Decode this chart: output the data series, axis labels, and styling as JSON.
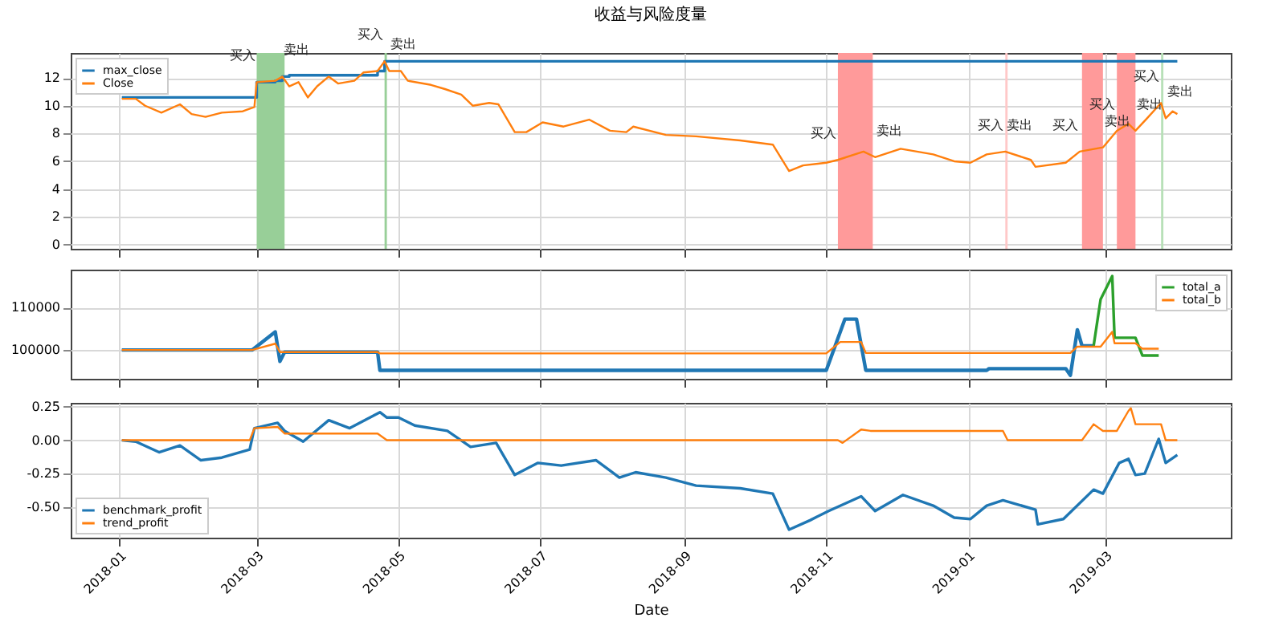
{
  "chart_data": [
    {
      "type": "line",
      "title": "收益与风险度量",
      "xlim": [
        "2017-12-11",
        "2019-04-24"
      ],
      "xticks": [
        "2018-01",
        "2018-03",
        "2018-05",
        "2018-07",
        "2018-09",
        "2018-11",
        "2019-01",
        "2019-03"
      ],
      "ylim": [
        -0.3,
        13.8
      ],
      "yticks": [
        0,
        2,
        4,
        6,
        8,
        10,
        12
      ],
      "grid": true,
      "legend": "top left",
      "tick_labels": "y",
      "series": [
        {
          "name": "max_close",
          "type": "step",
          "color": "#1f77b4",
          "x": [
            "2018-01-02",
            "2018-03-01",
            "2018-03-09",
            "2018-03-12",
            "2018-03-15",
            "2018-04-22",
            "2018-04-25",
            "2019-04-01"
          ],
          "values": [
            10.6,
            11.7,
            11.8,
            12.1,
            12.2,
            12.5,
            13.2,
            13.2
          ]
        },
        {
          "name": "Close",
          "type": "line",
          "color": "#ff7f0e",
          "x": [
            "2018-01-02",
            "2018-01-08",
            "2018-01-12",
            "2018-01-19",
            "2018-01-27",
            "2018-02-01",
            "2018-02-07",
            "2018-02-14",
            "2018-02-23",
            "2018-02-28",
            "2018-03-01",
            "2018-03-09",
            "2018-03-12",
            "2018-03-15",
            "2018-03-19",
            "2018-03-23",
            "2018-03-27",
            "2018-04-01",
            "2018-04-05",
            "2018-04-12",
            "2018-04-16",
            "2018-04-22",
            "2018-04-25",
            "2018-04-27",
            "2018-05-02",
            "2018-05-05",
            "2018-05-15",
            "2018-05-21",
            "2018-05-28",
            "2018-06-02",
            "2018-06-09",
            "2018-06-13",
            "2018-06-20",
            "2018-06-25",
            "2018-07-02",
            "2018-07-11",
            "2018-07-22",
            "2018-07-31",
            "2018-08-07",
            "2018-08-10",
            "2018-08-24",
            "2018-09-06",
            "2018-09-25",
            "2018-10-09",
            "2018-10-16",
            "2018-10-22",
            "2018-11-01",
            "2018-11-06",
            "2018-11-17",
            "2018-11-22",
            "2018-12-03",
            "2018-12-17",
            "2018-12-26",
            "2019-01-02",
            "2019-01-09",
            "2019-01-17",
            "2019-01-28",
            "2019-01-30",
            "2019-02-12",
            "2019-02-18",
            "2019-02-28",
            "2019-03-06",
            "2019-03-11",
            "2019-03-14",
            "2019-03-19",
            "2019-03-25",
            "2019-03-27",
            "2019-03-30",
            "2019-04-01"
          ],
          "values": [
            10.5,
            10.5,
            10.0,
            9.5,
            10.1,
            9.4,
            9.2,
            9.5,
            9.6,
            9.9,
            11.7,
            11.8,
            12.1,
            11.4,
            11.7,
            10.6,
            11.4,
            12.1,
            11.6,
            11.8,
            12.4,
            12.5,
            13.2,
            12.5,
            12.5,
            11.8,
            11.5,
            11.2,
            10.8,
            10.0,
            10.2,
            10.1,
            8.1,
            8.1,
            8.8,
            8.5,
            9.0,
            8.2,
            8.1,
            8.5,
            7.9,
            7.8,
            7.5,
            7.2,
            5.3,
            5.7,
            5.9,
            6.1,
            6.7,
            6.3,
            6.9,
            6.5,
            6.0,
            5.9,
            6.5,
            6.7,
            6.1,
            5.6,
            5.9,
            6.7,
            7.0,
            8.2,
            8.7,
            8.2,
            9.1,
            10.2,
            9.1,
            9.6,
            9.4
          ]
        }
      ],
      "bands": [
        {
          "axis": "x",
          "from": "2018-03-01",
          "to": "2018-03-13",
          "color": "#98cf98"
        },
        {
          "axis": "x",
          "from": "2018-04-25",
          "to": "2018-04-26",
          "color": "#98cf98"
        },
        {
          "axis": "x",
          "from": "2018-11-06",
          "to": "2018-11-21",
          "color": "#ff9a9a"
        },
        {
          "axis": "x",
          "from": "2019-01-17",
          "to": "2019-01-18",
          "color": "#ffc8c8"
        },
        {
          "axis": "x",
          "from": "2019-02-19",
          "to": "2019-02-28",
          "color": "#ff9a9a"
        },
        {
          "axis": "x",
          "from": "2019-03-06",
          "to": "2019-03-14",
          "color": "#ff9a9a"
        },
        {
          "axis": "x",
          "from": "2019-03-25",
          "to": "2019-03-26",
          "color": "#b8e0b8"
        }
      ],
      "annotations": [
        {
          "text": "买入",
          "x": "2018-03-01",
          "y": 11.7
        },
        {
          "text": "卖出",
          "x": "2018-03-12",
          "y": 12.1
        },
        {
          "text": "买入",
          "x": "2018-04-25",
          "y": 13.2
        },
        {
          "text": "卖出",
          "x": "2018-04-27",
          "y": 12.5
        },
        {
          "text": "买入",
          "x": "2018-11-06",
          "y": 6.1
        },
        {
          "text": "卖出",
          "x": "2018-11-22",
          "y": 6.3
        },
        {
          "text": "买入",
          "x": "2019-01-17",
          "y": 6.7
        },
        {
          "text": "卖出",
          "x": "2019-01-17",
          "y": 6.7
        },
        {
          "text": "买入",
          "x": "2019-02-18",
          "y": 6.7
        },
        {
          "text": "卖出",
          "x": "2019-02-28",
          "y": 7.0
        },
        {
          "text": "买入",
          "x": "2019-03-06",
          "y": 8.2
        },
        {
          "text": "卖出",
          "x": "2019-03-14",
          "y": 8.2
        },
        {
          "text": "买入",
          "x": "2019-03-25",
          "y": 10.2
        },
        {
          "text": "卖出",
          "x": "2019-03-27",
          "y": 9.1
        }
      ]
    },
    {
      "type": "line",
      "xlim": [
        "2017-12-11",
        "2019-04-24"
      ],
      "xticks": [
        "2018-01",
        "2018-03",
        "2018-05",
        "2018-07",
        "2018-09",
        "2018-11",
        "2019-01",
        "2019-03"
      ],
      "ylim": [
        93200,
        119000
      ],
      "yticks": [
        {
          "value": 100000,
          "label": "100000"
        },
        {
          "value": 110000,
          "label": "110000"
        }
      ],
      "grid": true,
      "legend": "top right",
      "tick_labels": "y",
      "series": [
        {
          "color": "#1f77b4",
          "x": [
            "2018-01-02",
            "2018-02-27",
            "2018-03-09",
            "2018-03-11",
            "2018-03-13",
            "2018-04-22",
            "2018-04-23",
            "2018-11-01",
            "2018-11-09",
            "2018-11-14",
            "2018-11-18",
            "2019-01-09",
            "2019-01-10",
            "2019-02-12",
            "2019-02-14",
            "2019-02-17",
            "2019-02-19",
            "2019-02-24"
          ],
          "values": [
            100000,
            100000,
            104300,
            97300,
            99500,
            99500,
            95200,
            95200,
            107300,
            107300,
            95200,
            95200,
            95600,
            95600,
            94000,
            104800,
            101000,
            101000
          ]
        },
        {
          "name": "total_a",
          "color": "#2ca02c",
          "x": [
            "2019-02-24",
            "2019-02-27",
            "2019-03-04",
            "2019-03-05",
            "2019-03-14",
            "2019-03-17",
            "2019-03-24"
          ],
          "values": [
            101000,
            112000,
            117500,
            102900,
            102900,
            98700,
            98700
          ]
        },
        {
          "name": "total_b",
          "color": "#ff7f0e",
          "x": [
            "2018-01-02",
            "2018-02-27",
            "2018-03-09",
            "2018-03-11",
            "2018-04-22",
            "2018-04-23",
            "2018-11-01",
            "2018-11-07",
            "2018-11-16",
            "2018-11-18",
            "2019-02-14",
            "2019-02-17",
            "2019-02-27",
            "2019-03-04",
            "2019-03-05",
            "2019-03-14",
            "2019-03-17",
            "2019-03-24"
          ],
          "values": [
            100000,
            100000,
            101500,
            99500,
            99500,
            99200,
            99200,
            101900,
            101900,
            99300,
            99300,
            100800,
            100800,
            104300,
            101600,
            101600,
            100300,
            100300
          ]
        }
      ]
    },
    {
      "type": "line",
      "xlabel": "Date",
      "xlim": [
        "2017-12-11",
        "2019-04-24"
      ],
      "xticks": [
        "2018-01",
        "2018-03",
        "2018-05",
        "2018-07",
        "2018-09",
        "2018-11",
        "2019-01",
        "2019-03"
      ],
      "ylim": [
        -0.73,
        0.28
      ],
      "yticks": [
        {
          "value": -0.5,
          "label": "-0.50"
        },
        {
          "value": -0.25,
          "label": "-0.25"
        },
        {
          "value": 0,
          "label": "0.00"
        },
        {
          "value": 0.25,
          "label": "0.25"
        }
      ],
      "grid": true,
      "legend": "bottom left",
      "series": [
        {
          "name": "benchmark_profit",
          "color": "#1f77b4",
          "x": [
            "2018-01-02",
            "2018-01-08",
            "2018-01-18",
            "2018-01-27",
            "2018-02-05",
            "2018-02-14",
            "2018-02-26",
            "2018-02-28",
            "2018-03-10",
            "2018-03-13",
            "2018-03-21",
            "2018-04-01",
            "2018-04-10",
            "2018-04-23",
            "2018-04-26",
            "2018-05-01",
            "2018-05-08",
            "2018-05-22",
            "2018-06-01",
            "2018-06-12",
            "2018-06-20",
            "2018-06-30",
            "2018-07-10",
            "2018-07-25",
            "2018-08-04",
            "2018-08-11",
            "2018-08-24",
            "2018-09-06",
            "2018-09-25",
            "2018-10-09",
            "2018-10-16",
            "2018-10-25",
            "2018-11-02",
            "2018-11-16",
            "2018-11-22",
            "2018-12-04",
            "2018-12-17",
            "2018-12-26",
            "2019-01-02",
            "2019-01-09",
            "2019-01-16",
            "2019-01-30",
            "2019-01-31",
            "2019-02-11",
            "2019-02-24",
            "2019-02-28",
            "2019-03-07",
            "2019-03-11",
            "2019-03-14",
            "2019-03-18",
            "2019-03-24",
            "2019-03-27",
            "2019-04-01"
          ],
          "values": [
            0.0,
            -0.01,
            -0.09,
            -0.04,
            -0.15,
            -0.13,
            -0.07,
            0.09,
            0.13,
            0.07,
            -0.01,
            0.15,
            0.09,
            0.21,
            0.17,
            0.17,
            0.11,
            0.07,
            -0.05,
            -0.02,
            -0.26,
            -0.17,
            -0.19,
            -0.15,
            -0.28,
            -0.24,
            -0.28,
            -0.34,
            -0.36,
            -0.4,
            -0.67,
            -0.6,
            -0.53,
            -0.42,
            -0.53,
            -0.41,
            -0.49,
            -0.58,
            -0.59,
            -0.49,
            -0.45,
            -0.52,
            -0.63,
            -0.59,
            -0.37,
            -0.4,
            -0.17,
            -0.14,
            -0.26,
            -0.25,
            0.01,
            -0.17,
            -0.11
          ]
        },
        {
          "name": "trend_profit",
          "color": "#ff7f0e",
          "x": [
            "2018-01-02",
            "2018-02-26",
            "2018-02-28",
            "2018-03-10",
            "2018-03-13",
            "2018-04-22",
            "2018-04-26",
            "2018-11-06",
            "2018-11-08",
            "2018-11-16",
            "2018-11-20",
            "2019-01-16",
            "2019-01-18",
            "2019-02-19",
            "2019-02-24",
            "2019-02-28",
            "2019-03-06",
            "2019-03-11",
            "2019-03-12",
            "2019-03-14",
            "2019-03-25",
            "2019-03-27",
            "2019-04-01"
          ],
          "values": [
            0,
            0,
            0.09,
            0.1,
            0.05,
            0.05,
            0,
            0,
            -0.02,
            0.08,
            0.07,
            0.07,
            0,
            0,
            0.12,
            0.07,
            0.07,
            0.22,
            0.24,
            0.12,
            0.12,
            0,
            0
          ]
        }
      ]
    }
  ]
}
